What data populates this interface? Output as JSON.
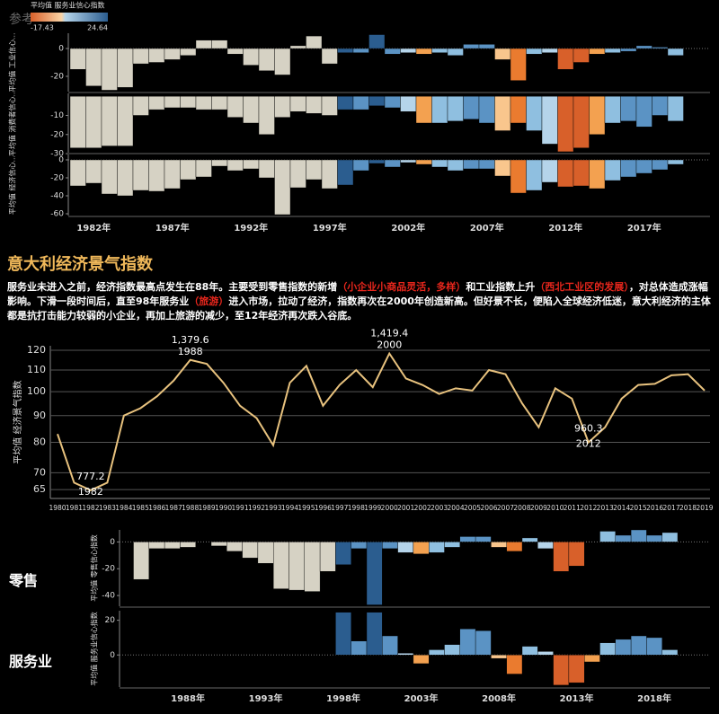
{
  "overlay_text": "参考",
  "header": {
    "title": "意大利经济景气指数",
    "paragraph": [
      {
        "text": "服务业未进入之前，经济指数最高点发生在88年。主要受到零售指数的新增",
        "highlight": false
      },
      {
        "text": "（小企业小商品灵活，多样）",
        "highlight": true
      },
      {
        "text": "和工业指数上升",
        "highlight": false
      },
      {
        "text": "（西北工业区的发展）",
        "highlight": true
      },
      {
        "text": "，对总体造成涨幅影响。下滑一段时间后，直至98年服务业",
        "highlight": false
      },
      {
        "text": "（旅游）",
        "highlight": true
      },
      {
        "text": "进入市场，拉动了经济，指数再次在2000年创造新高。但好景不长，便陷入全球经济低迷，意大利经济的主体都是抗打击能力较弱的小企业，再加上旅游的减少，至12年经济再次跌入谷底。",
        "highlight": false
      }
    ]
  },
  "chart_data": [
    {
      "type": "bar",
      "legend": {
        "title": "平均值 服务业信心指数",
        "min": -17.43,
        "max": 24.64
      },
      "categories": [
        null,
        "1982年",
        null,
        null,
        null,
        null,
        "1987年",
        null,
        null,
        null,
        null,
        "1992年",
        null,
        null,
        null,
        null,
        "1997年",
        null,
        null,
        null,
        null,
        "2002年",
        null,
        null,
        null,
        null,
        "2007年",
        null,
        null,
        null,
        null,
        "2012年",
        null,
        null,
        null,
        null,
        "2017年",
        null,
        null
      ],
      "colors": [
        "#d6d2c4",
        "#d6d2c4",
        "#d6d2c4",
        "#d6d2c4",
        "#d6d2c4",
        "#d6d2c4",
        "#d6d2c4",
        "#d6d2c4",
        "#d6d2c4",
        "#d6d2c4",
        "#d6d2c4",
        "#d6d2c4",
        "#d6d2c4",
        "#d6d2c4",
        "#d6d2c4",
        "#d6d2c4",
        "#d6d2c4",
        "#2b5d8f",
        "#5b93c4",
        "#2b5d8f",
        "#5b93c4",
        "#b5d4ea",
        "#f3a150",
        "#8fbfe0",
        "#8fbfe0",
        "#5b93c4",
        "#5b93c4",
        "#f9c68d",
        "#ea7b2f",
        "#8fbfe0",
        "#b5d4ea",
        "#d8602a",
        "#d8602a",
        "#f3a150",
        "#8fbfe0",
        "#5b93c4",
        "#5b93c4",
        "#5b93c4",
        "#8fbfe0"
      ],
      "panels": [
        {
          "ylabel": "平均值 工业信心...",
          "ylim": [
            -31,
            11
          ],
          "yticks": [
            0,
            -20
          ],
          "values": [
            -15,
            -27,
            -30,
            -28,
            -11,
            -10,
            -8,
            -5,
            6,
            6,
            -4,
            -12,
            -16,
            -19,
            2,
            9,
            -11,
            -3,
            -3,
            10,
            -4,
            -3,
            -4,
            -3,
            -5,
            3,
            3,
            -8,
            -23,
            -4,
            -3,
            -15,
            -10,
            -4,
            -3,
            -2,
            2,
            1,
            -5
          ]
        },
        {
          "ylabel": "平均值 消费者信心...",
          "ylim": [
            -29.5,
            1.5
          ],
          "yticks": [
            -10,
            -20,
            -30
          ],
          "values": [
            -27,
            -27,
            -26,
            -26,
            -10,
            -7,
            -6,
            -6,
            -7,
            -7,
            -11,
            -14,
            -20,
            -11,
            -8,
            -9,
            -10,
            -7,
            -7,
            -5,
            -6,
            -8,
            -14,
            -14,
            -13,
            -12,
            -14,
            -18,
            -14,
            -18,
            -25,
            -29,
            -27,
            -20,
            -14,
            -13,
            -16,
            -10,
            -13
          ]
        },
        {
          "ylabel": "平均值 经济信心...",
          "ylim": [
            -62,
            6
          ],
          "yticks": [
            0,
            -20,
            -40,
            -60
          ],
          "values": [
            -29,
            -26,
            -38,
            -40,
            -34,
            -35,
            -32,
            -22,
            -19,
            -7,
            -12,
            -10,
            -20,
            -61,
            -31,
            -22,
            -32,
            -28,
            -12,
            -4,
            -8,
            -3,
            -5,
            -8,
            -12,
            -10,
            -10,
            -18,
            -37,
            -34,
            -25,
            -30,
            -29,
            -32,
            -23,
            -19,
            -15,
            -11,
            -5
          ]
        }
      ]
    },
    {
      "type": "line",
      "ylabel": "平均值 经济景气指数",
      "color": "#e8c27e",
      "log": true,
      "grid": true,
      "categories": [
        "1980",
        "1981",
        "1982",
        "1983",
        "1984",
        "1985",
        "1986",
        "1987",
        "1988",
        "1989",
        "1990",
        "1991",
        "1992",
        "1993",
        "1994",
        "1995",
        "1996",
        "1997",
        "1998",
        "1999",
        "2000",
        "2001",
        "2002",
        "2003",
        "2004",
        "2005",
        "2006",
        "2007",
        "2008",
        "2009",
        "2010",
        "2011",
        "2012",
        "2013",
        "2014",
        "2015",
        "2016",
        "2017",
        "2018",
        "2019"
      ],
      "values": [
        83,
        67,
        64.8,
        67,
        90,
        93,
        98,
        105,
        115,
        113,
        104,
        94,
        89,
        79,
        104,
        112,
        94,
        103,
        110,
        102,
        118.3,
        106,
        103,
        99,
        101.5,
        100.5,
        110,
        108,
        95,
        85.5,
        101.5,
        97,
        80,
        85.5,
        97,
        103,
        103.5,
        107.5,
        108,
        100.5
      ],
      "ylim": [
        62.5,
        122.4
      ],
      "yticks": [
        65,
        70,
        80,
        90,
        100,
        110,
        120
      ],
      "annotations": [
        {
          "label": "777.2",
          "year": "1982"
        },
        {
          "label": "1,379.6",
          "year": "1988"
        },
        {
          "label": "1,419.4",
          "year": "2000"
        },
        {
          "label": "960.3",
          "year": "2012"
        }
      ]
    },
    {
      "type": "bar",
      "categories": [
        null,
        null,
        null,
        "1988年",
        null,
        null,
        null,
        null,
        "1993年",
        null,
        null,
        null,
        null,
        "1998年",
        null,
        null,
        null,
        null,
        "2003年",
        null,
        null,
        null,
        null,
        "2008年",
        null,
        null,
        null,
        null,
        "2013年",
        null,
        null,
        null,
        null,
        "2018年",
        null
      ],
      "colors": [
        "#d6d2c4",
        "#d6d2c4",
        "#d6d2c4",
        "#d6d2c4",
        "#d6d2c4",
        "#d6d2c4",
        "#d6d2c4",
        "#d6d2c4",
        "#d6d2c4",
        "#d6d2c4",
        "#d6d2c4",
        "#d6d2c4",
        "#d6d2c4",
        "#2b5d8f",
        "#5b93c4",
        "#2b5d8f",
        "#5b93c4",
        "#b5d4ea",
        "#f3a150",
        "#8fbfe0",
        "#8fbfe0",
        "#5b93c4",
        "#5b93c4",
        "#f9c68d",
        "#ea7b2f",
        "#8fbfe0",
        "#b5d4ea",
        "#d8602a",
        "#d8602a",
        "#f3a150",
        "#8fbfe0",
        "#5b93c4",
        "#5b93c4",
        "#5b93c4",
        "#8fbfe0"
      ],
      "panels": [
        {
          "name": "零售",
          "ylabel": "平均值 零售信心指数",
          "ylim": [
            -48,
            9
          ],
          "yticks": [
            0,
            -20,
            -40
          ],
          "values": [
            -28,
            -5,
            -5,
            -4,
            0,
            -3,
            -7,
            -12,
            -16,
            -35,
            -36,
            -37,
            -22,
            -17,
            -5,
            -47,
            -5,
            -8,
            -9,
            -8,
            -4,
            4,
            4,
            -4,
            -7,
            3,
            -5,
            -22,
            -18,
            0,
            8,
            5,
            9,
            5,
            7
          ]
        },
        {
          "name": "服务业",
          "ylabel": "平均值 服务业信心指数",
          "ylim": [
            -18.5,
            25.5
          ],
          "yticks": [
            0,
            20
          ],
          "values": [
            null,
            null,
            null,
            null,
            null,
            null,
            null,
            null,
            null,
            null,
            null,
            null,
            null,
            24.6,
            8,
            24.6,
            11,
            1,
            -5,
            3,
            6,
            15,
            14,
            -2,
            -11,
            5,
            2,
            -17.4,
            -16,
            -4,
            7,
            9,
            11,
            10,
            3
          ]
        }
      ]
    }
  ]
}
